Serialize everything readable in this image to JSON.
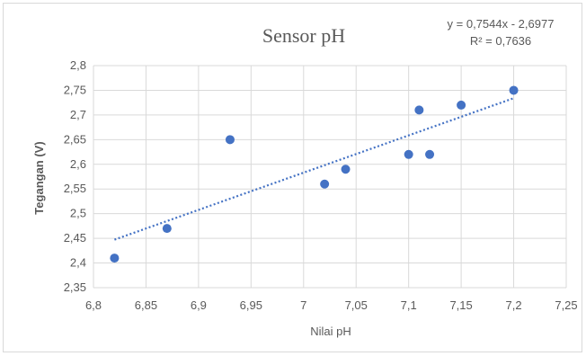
{
  "chart_data": {
    "type": "scatter",
    "title": "Sensor pH",
    "xlabel": "Nilai pH",
    "ylabel": "Tegangan (V)",
    "xlim": [
      6.8,
      7.25
    ],
    "ylim": [
      2.35,
      2.8
    ],
    "x_ticks": [
      "6,8",
      "6,85",
      "6,9",
      "6,95",
      "7",
      "7,05",
      "7,1",
      "7,15",
      "7,2",
      "7,25"
    ],
    "y_ticks": [
      "2,35",
      "2,4",
      "2,45",
      "2,5",
      "2,55",
      "2,6",
      "2,65",
      "2,7",
      "2,75",
      "2,8"
    ],
    "grid": true,
    "legend": "none",
    "points": [
      {
        "x": 6.82,
        "y": 2.41
      },
      {
        "x": 6.87,
        "y": 2.47
      },
      {
        "x": 6.93,
        "y": 2.65
      },
      {
        "x": 7.02,
        "y": 2.56
      },
      {
        "x": 7.04,
        "y": 2.59
      },
      {
        "x": 7.1,
        "y": 2.62
      },
      {
        "x": 7.11,
        "y": 2.71
      },
      {
        "x": 7.12,
        "y": 2.62
      },
      {
        "x": 7.15,
        "y": 2.72
      },
      {
        "x": 7.2,
        "y": 2.75
      }
    ],
    "trendline": {
      "type": "linear",
      "slope": 0.7544,
      "intercept": -2.6977,
      "x_range": [
        6.82,
        7.2
      ],
      "equation_label": "y = 0,7544x - 2,6977",
      "r2_label": "R² = 0,7636"
    },
    "colors": {
      "marker": "#4472c4",
      "trendline": "#4472c4",
      "grid": "#d9d9d9",
      "text": "#595959"
    }
  }
}
